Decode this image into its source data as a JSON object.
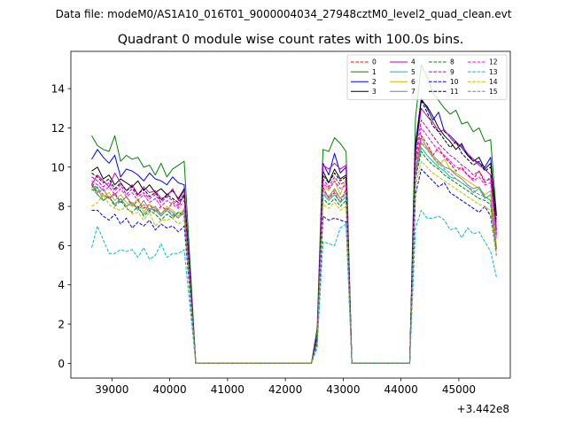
{
  "chart_data": {
    "type": "line",
    "suptitle": "Data file: modeM0/AS1A10_016T01_9000004034_27948cztM0_level2_quad_clean.evt",
    "title": "Quadrant 0 module wise count rates with 100.0s bins.",
    "xlabel": "",
    "ylabel": "",
    "x_offset_label": "+3.442e8",
    "xlim": [
      38290,
      45890
    ],
    "ylim": [
      -0.75,
      15.9
    ],
    "xticks": [
      39000,
      40000,
      41000,
      42000,
      43000,
      44000,
      45000
    ],
    "yticks": [
      0,
      2,
      4,
      6,
      8,
      10,
      12,
      14
    ],
    "xtick_labels": [
      "39000",
      "40000",
      "41000",
      "42000",
      "43000",
      "44000",
      "45000"
    ],
    "ytick_labels": [
      "0",
      "2",
      "4",
      "6",
      "8",
      "10",
      "12",
      "14"
    ],
    "legend_position": "top-right",
    "legend_ncol": 4,
    "x": [
      38650,
      38750,
      38850,
      38950,
      39050,
      39150,
      39250,
      39350,
      39450,
      39550,
      39650,
      39750,
      39850,
      39950,
      40050,
      40150,
      40250,
      40350,
      40450,
      40550,
      40650,
      40750,
      40850,
      40950,
      41050,
      41150,
      41250,
      41350,
      41450,
      41550,
      41650,
      41750,
      41850,
      41950,
      42050,
      42150,
      42250,
      42350,
      42450,
      42550,
      42650,
      42750,
      42850,
      42950,
      43050,
      43150,
      43250,
      43350,
      43450,
      43550,
      43650,
      43750,
      43850,
      43950,
      44050,
      44150,
      44250,
      44350,
      44450,
      44550,
      44650,
      44750,
      44850,
      44950,
      45050,
      45150,
      45250,
      45350,
      45450,
      45550,
      45650
    ],
    "series": [
      {
        "name": "0",
        "color": "#ff0000",
        "dash": "dashed",
        "values": [
          9.2,
          8.9,
          8.6,
          8.4,
          8.7,
          8.2,
          8.5,
          8.0,
          8.3,
          7.9,
          8.1,
          7.7,
          8.0,
          7.8,
          8.2,
          8.0,
          8.6,
          4.4,
          0,
          0,
          0,
          0,
          0,
          0,
          0,
          0,
          0,
          0,
          0,
          0,
          0,
          0,
          0,
          0,
          0,
          0,
          0,
          0,
          0,
          1.2,
          9.0,
          8.4,
          8.7,
          8.2,
          8.9,
          0,
          0,
          0,
          0,
          0,
          0,
          0,
          0,
          0,
          0,
          0,
          10.2,
          11.6,
          11.2,
          10.6,
          11.0,
          10.5,
          10.2,
          9.8,
          10.0,
          9.6,
          9.4,
          9.8,
          9.2,
          9.5,
          6.5
        ]
      },
      {
        "name": "1",
        "color": "#008000",
        "dash": "solid",
        "values": [
          11.6,
          11.1,
          10.9,
          10.8,
          11.6,
          10.3,
          10.6,
          10.4,
          10.5,
          10.0,
          10.1,
          9.6,
          10.2,
          9.5,
          9.9,
          10.1,
          10.3,
          5.2,
          0,
          0,
          0,
          0,
          0,
          0,
          0,
          0,
          0,
          0,
          0,
          0,
          0,
          0,
          0,
          0,
          0,
          0,
          0,
          0,
          0,
          1.8,
          10.9,
          10.8,
          11.5,
          11.2,
          10.8,
          0,
          0,
          0,
          0,
          0,
          0,
          0,
          0,
          0,
          0,
          0,
          12.5,
          15.2,
          14.6,
          13.8,
          13.4,
          13.0,
          12.7,
          12.9,
          12.2,
          12.3,
          11.8,
          12.0,
          11.3,
          11.4,
          7.6
        ]
      },
      {
        "name": "2",
        "color": "#0000ff",
        "dash": "solid",
        "values": [
          10.4,
          10.9,
          10.5,
          10.2,
          10.6,
          9.5,
          9.9,
          9.8,
          9.6,
          9.3,
          9.7,
          9.4,
          9.3,
          9.1,
          9.5,
          9.2,
          9.1,
          4.6,
          0,
          0,
          0,
          0,
          0,
          0,
          0,
          0,
          0,
          0,
          0,
          0,
          0,
          0,
          0,
          0,
          0,
          0,
          0,
          0,
          0,
          1.5,
          10.2,
          9.6,
          10.7,
          9.7,
          10.0,
          0,
          0,
          0,
          0,
          0,
          0,
          0,
          0,
          0,
          0,
          0,
          11.2,
          13.5,
          13.0,
          12.4,
          12.8,
          11.8,
          11.6,
          11.3,
          11.0,
          10.6,
          10.4,
          10.2,
          10.0,
          10.5,
          6.8
        ]
      },
      {
        "name": "3",
        "color": "#000000",
        "dash": "solid",
        "values": [
          9.8,
          10.0,
          9.4,
          9.6,
          9.1,
          9.4,
          9.2,
          9.0,
          9.3,
          8.8,
          9.1,
          8.7,
          8.9,
          8.6,
          8.8,
          8.4,
          8.9,
          4.5,
          0,
          0,
          0,
          0,
          0,
          0,
          0,
          0,
          0,
          0,
          0,
          0,
          0,
          0,
          0,
          0,
          0,
          0,
          0,
          0,
          0,
          1.3,
          9.8,
          9.2,
          9.9,
          9.4,
          9.6,
          0,
          0,
          0,
          0,
          0,
          0,
          0,
          0,
          0,
          0,
          0,
          11.0,
          13.4,
          13.1,
          12.6,
          12.0,
          11.6,
          11.3,
          10.9,
          11.2,
          10.6,
          10.3,
          10.5,
          9.9,
          10.2,
          7.5
        ]
      },
      {
        "name": "4",
        "color": "#bf00bf",
        "dash": "solid",
        "values": [
          9.1,
          9.6,
          9.3,
          9.0,
          9.7,
          9.2,
          8.8,
          9.1,
          8.6,
          9.0,
          8.7,
          8.8,
          8.4,
          8.5,
          8.9,
          8.3,
          8.8,
          4.5,
          0,
          0,
          0,
          0,
          0,
          0,
          0,
          0,
          0,
          0,
          0,
          0,
          0,
          0,
          0,
          0,
          0,
          0,
          0,
          0,
          0,
          1.4,
          10.1,
          9.9,
          10.2,
          9.9,
          10.1,
          0,
          0,
          0,
          0,
          0,
          0,
          0,
          0,
          0,
          0,
          0,
          10.8,
          13.0,
          12.6,
          12.3,
          11.8,
          11.9,
          11.5,
          11.2,
          11.1,
          10.7,
          10.4,
          10.1,
          9.9,
          9.6,
          6.8
        ]
      },
      {
        "name": "5",
        "color": "#00bfbf",
        "dash": "solid",
        "values": [
          8.8,
          9.0,
          8.3,
          8.5,
          8.1,
          8.4,
          8.0,
          8.2,
          7.9,
          7.6,
          7.9,
          7.8,
          7.5,
          7.8,
          7.5,
          7.7,
          7.6,
          4.0,
          0,
          0,
          0,
          0,
          0,
          0,
          0,
          0,
          0,
          0,
          0,
          0,
          0,
          0,
          0,
          0,
          0,
          0,
          0,
          0,
          0,
          1.1,
          8.6,
          8.3,
          8.6,
          8.2,
          8.5,
          0,
          0,
          0,
          0,
          0,
          0,
          0,
          0,
          0,
          0,
          0,
          9.6,
          11.0,
          10.6,
          10.3,
          10.0,
          9.8,
          9.5,
          9.4,
          9.2,
          9.0,
          8.7,
          8.9,
          8.4,
          8.6,
          5.9
        ]
      },
      {
        "name": "6",
        "color": "#bfbf00",
        "dash": "solid",
        "values": [
          9.0,
          8.8,
          8.5,
          8.7,
          8.3,
          8.6,
          8.2,
          8.0,
          8.4,
          7.7,
          8.1,
          7.9,
          7.6,
          8.0,
          7.8,
          7.5,
          7.9,
          4.1,
          0,
          0,
          0,
          0,
          0,
          0,
          0,
          0,
          0,
          0,
          0,
          0,
          0,
          0,
          0,
          0,
          0,
          0,
          0,
          0,
          0,
          1.2,
          9.1,
          8.8,
          9.3,
          8.6,
          9.4,
          0,
          0,
          0,
          0,
          0,
          0,
          0,
          0,
          0,
          0,
          0,
          9.7,
          11.2,
          10.9,
          10.5,
          10.1,
          10.4,
          9.9,
          9.7,
          9.5,
          9.3,
          9.1,
          8.9,
          8.6,
          8.8,
          6.0
        ]
      },
      {
        "name": "7",
        "color": "#808080",
        "dash": "solid",
        "values": [
          9.2,
          8.7,
          8.9,
          8.4,
          8.6,
          8.2,
          8.5,
          8.1,
          7.9,
          8.3,
          7.8,
          8.0,
          7.6,
          7.9,
          7.7,
          7.4,
          7.8,
          4.0,
          0,
          0,
          0,
          0,
          0,
          0,
          0,
          0,
          0,
          0,
          0,
          0,
          0,
          0,
          0,
          0,
          0,
          0,
          0,
          0,
          0,
          1.2,
          8.8,
          8.5,
          8.9,
          8.4,
          8.7,
          0,
          0,
          0,
          0,
          0,
          0,
          0,
          0,
          0,
          0,
          0,
          9.8,
          11.5,
          11.0,
          10.6,
          10.3,
          10.0,
          9.9,
          9.6,
          9.4,
          9.1,
          8.9,
          9.0,
          8.5,
          8.3,
          5.8
        ]
      },
      {
        "name": "8",
        "color": "#008000",
        "dash": "dashed",
        "values": [
          9.1,
          8.6,
          8.3,
          8.5,
          8.0,
          8.3,
          7.9,
          7.7,
          8.0,
          7.5,
          7.8,
          7.6,
          7.3,
          7.6,
          7.4,
          7.7,
          7.5,
          3.9,
          0,
          0,
          0,
          0,
          0,
          0,
          0,
          0,
          0,
          0,
          0,
          0,
          0,
          0,
          0,
          0,
          0,
          0,
          0,
          0,
          0,
          1.1,
          8.4,
          8.1,
          8.4,
          8.0,
          8.3,
          0,
          0,
          0,
          0,
          0,
          0,
          0,
          0,
          0,
          0,
          0,
          9.4,
          10.8,
          10.4,
          10.1,
          9.9,
          9.6,
          9.4,
          9.2,
          9.0,
          8.8,
          8.6,
          8.4,
          8.3,
          8.1,
          5.7
        ]
      },
      {
        "name": "9",
        "color": "#bf00bf",
        "dash": "dashed",
        "values": [
          9.5,
          9.3,
          9.0,
          9.2,
          8.8,
          9.1,
          8.6,
          8.9,
          8.5,
          8.7,
          8.4,
          8.6,
          8.2,
          8.5,
          8.3,
          8.1,
          8.5,
          4.3,
          0,
          0,
          0,
          0,
          0,
          0,
          0,
          0,
          0,
          0,
          0,
          0,
          0,
          0,
          0,
          0,
          0,
          0,
          0,
          0,
          0,
          1.3,
          9.4,
          9.0,
          9.5,
          9.1,
          9.3,
          0,
          0,
          0,
          0,
          0,
          0,
          0,
          0,
          0,
          0,
          0,
          10.5,
          12.4,
          12.0,
          11.6,
          11.2,
          10.9,
          10.6,
          10.4,
          10.1,
          9.9,
          9.6,
          9.8,
          9.3,
          9.4,
          6.6
        ]
      },
      {
        "name": "10",
        "color": "#0000ff",
        "dash": "dashed",
        "values": [
          7.8,
          7.8,
          7.5,
          7.3,
          7.6,
          7.1,
          7.4,
          6.9,
          7.2,
          7.0,
          7.3,
          6.8,
          7.1,
          6.9,
          7.0,
          6.7,
          7.0,
          3.6,
          0,
          0,
          0,
          0,
          0,
          0,
          0,
          0,
          0,
          0,
          0,
          0,
          0,
          0,
          0,
          0,
          0,
          0,
          0,
          0,
          0,
          1.0,
          7.5,
          7.3,
          7.4,
          7.3,
          7.2,
          0,
          0,
          0,
          0,
          0,
          0,
          0,
          0,
          0,
          0,
          0,
          8.6,
          9.9,
          9.6,
          9.3,
          9.0,
          9.2,
          8.7,
          8.5,
          8.3,
          8.1,
          7.9,
          7.7,
          8.0,
          7.5,
          5.5
        ]
      },
      {
        "name": "11",
        "color": "#000000",
        "dash": "dashed",
        "values": [
          9.7,
          9.5,
          9.2,
          9.4,
          8.9,
          9.2,
          8.8,
          9.0,
          8.6,
          8.9,
          8.5,
          8.7,
          8.3,
          8.6,
          8.4,
          8.2,
          8.6,
          4.4,
          0,
          0,
          0,
          0,
          0,
          0,
          0,
          0,
          0,
          0,
          0,
          0,
          0,
          0,
          0,
          0,
          0,
          0,
          0,
          0,
          0,
          1.3,
          9.6,
          9.2,
          9.7,
          9.3,
          9.5,
          0,
          0,
          0,
          0,
          0,
          0,
          0,
          0,
          0,
          0,
          0,
          10.9,
          13.4,
          12.8,
          12.1,
          11.8,
          11.4,
          11.0,
          11.3,
          10.7,
          10.4,
          10.1,
          10.3,
          9.8,
          10.0,
          7.2
        ]
      },
      {
        "name": "12",
        "color": "#ff00ff",
        "dash": "dashed",
        "values": [
          9.3,
          9.1,
          8.8,
          9.0,
          8.6,
          8.9,
          8.5,
          8.7,
          8.3,
          8.6,
          8.2,
          8.4,
          8.0,
          8.3,
          8.1,
          7.9,
          8.3,
          4.2,
          0,
          0,
          0,
          0,
          0,
          0,
          0,
          0,
          0,
          0,
          0,
          0,
          0,
          0,
          0,
          0,
          0,
          0,
          0,
          0,
          0,
          1.2,
          9.2,
          8.9,
          9.3,
          8.9,
          9.1,
          0,
          0,
          0,
          0,
          0,
          0,
          0,
          0,
          0,
          0,
          0,
          10.3,
          12.0,
          11.6,
          11.2,
          10.8,
          10.6,
          10.3,
          10.0,
          9.9,
          9.6,
          9.3,
          9.5,
          9.1,
          9.2,
          6.4
        ]
      },
      {
        "name": "13",
        "color": "#00bfbf",
        "dash": "dashed",
        "values": [
          5.9,
          7.0,
          6.3,
          5.6,
          5.6,
          5.8,
          5.7,
          5.8,
          5.4,
          5.9,
          5.3,
          5.5,
          6.1,
          5.4,
          5.6,
          5.6,
          5.8,
          2.9,
          0,
          0,
          0,
          0,
          0,
          0,
          0,
          0,
          0,
          0,
          0,
          0,
          0,
          0,
          0,
          0,
          0,
          0,
          0,
          0,
          0,
          0.8,
          6.2,
          6.1,
          6.0,
          6.9,
          7.1,
          0,
          0,
          0,
          0,
          0,
          0,
          0,
          0,
          0,
          0,
          0,
          6.9,
          7.8,
          7.4,
          7.4,
          7.5,
          7.3,
          6.8,
          6.9,
          6.4,
          6.9,
          6.6,
          6.7,
          6.2,
          5.7,
          4.4
        ]
      },
      {
        "name": "14",
        "color": "#bfbf00",
        "dash": "dashed",
        "values": [
          8.0,
          8.2,
          8.6,
          8.1,
          7.9,
          7.8,
          8.0,
          7.6,
          7.7,
          7.3,
          7.7,
          7.0,
          7.3,
          7.3,
          7.4,
          7.1,
          7.3,
          3.8,
          0,
          0,
          0,
          0,
          0,
          0,
          0,
          0,
          0,
          0,
          0,
          0,
          0,
          0,
          0,
          0,
          0,
          0,
          0,
          0,
          0,
          1.1,
          8.1,
          7.9,
          8.2,
          7.8,
          8.0,
          0,
          0,
          0,
          0,
          0,
          0,
          0,
          0,
          0,
          0,
          0,
          9.0,
          10.3,
          10.0,
          9.7,
          9.5,
          9.3,
          9.1,
          8.9,
          8.7,
          8.5,
          8.3,
          8.1,
          8.0,
          7.8,
          5.4
        ]
      },
      {
        "name": "15",
        "color": "#808080",
        "dash": "dashed",
        "values": [
          8.9,
          8.6,
          8.3,
          8.5,
          8.1,
          8.4,
          8.0,
          8.2,
          7.8,
          8.1,
          7.7,
          7.9,
          7.5,
          7.8,
          7.6,
          7.4,
          7.8,
          4.0,
          0,
          0,
          0,
          0,
          0,
          0,
          0,
          0,
          0,
          0,
          0,
          0,
          0,
          0,
          0,
          0,
          0,
          0,
          0,
          0,
          0,
          1.1,
          8.7,
          8.4,
          8.8,
          8.4,
          8.6,
          0,
          0,
          0,
          0,
          0,
          0,
          0,
          0,
          0,
          0,
          0,
          9.6,
          11.3,
          10.9,
          10.5,
          10.2,
          9.9,
          9.7,
          9.4,
          9.2,
          9.0,
          8.8,
          8.6,
          8.5,
          8.3,
          5.9
        ]
      }
    ]
  }
}
